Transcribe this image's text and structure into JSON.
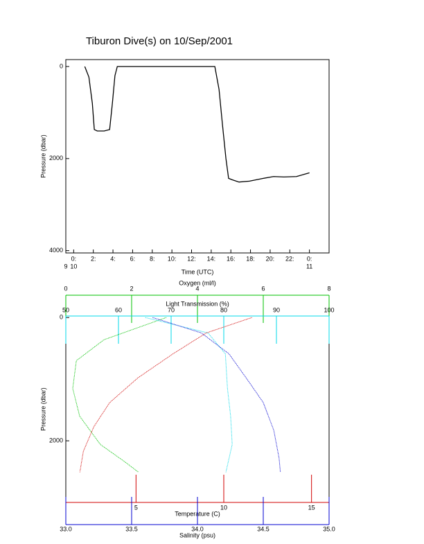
{
  "chart_data": [
    {
      "type": "line",
      "title": "Tiburon Dive(s) on 10/Sep/2001",
      "xlabel": "Time (UTC)",
      "ylabel": "Pressure (dbar)",
      "xlim": [
        -0.8,
        26
      ],
      "ylim": [
        -150,
        4050
      ],
      "y_inverted": true,
      "xticks": [
        {
          "value": 0,
          "label": "0:"
        },
        {
          "value": 2,
          "label": "2:"
        },
        {
          "value": 4,
          "label": "4:"
        },
        {
          "value": 6,
          "label": "6:"
        },
        {
          "value": 8,
          "label": "8:"
        },
        {
          "value": 10,
          "label": "10:"
        },
        {
          "value": 12,
          "label": "12:"
        },
        {
          "value": 14,
          "label": "14:"
        },
        {
          "value": 16,
          "label": "16:"
        },
        {
          "value": 18,
          "label": "18:"
        },
        {
          "value": 20,
          "label": "20:"
        },
        {
          "value": 22,
          "label": "22:"
        },
        {
          "value": 24,
          "label": "0:"
        }
      ],
      "day_ticks": [
        {
          "value": -0.8,
          "label": "9"
        },
        {
          "value": 0,
          "label": "10"
        },
        {
          "value": 24,
          "label": "11"
        }
      ],
      "yticks": [
        0,
        2000,
        4000
      ],
      "series": [
        {
          "color": "#000000",
          "x": [
            1.13,
            1.55,
            1.9,
            2.1,
            2.4,
            3.1,
            3.66,
            3.94,
            4.2,
            4.44,
            14.37,
            14.8,
            15.14,
            15.5,
            15.77,
            16.13,
            16.83,
            17.9,
            19.3,
            20.35,
            21.4,
            22.68,
            24.0
          ],
          "values": [
            0,
            230,
            800,
            1370,
            1400,
            1400,
            1370,
            800,
            200,
            0,
            0,
            500,
            1250,
            2000,
            2430,
            2460,
            2510,
            2490,
            2430,
            2390,
            2400,
            2390,
            2310
          ]
        }
      ]
    },
    {
      "type": "profile",
      "ylabel": "Pressure (dbar)",
      "ylim": [
        -25,
        3000
      ],
      "y_inverted": true,
      "yticks": [
        0,
        2000
      ],
      "axes": [
        {
          "label": "Oxygen (ml/l)",
          "color": "#00c000",
          "position": "top",
          "lim": [
            0,
            8
          ],
          "ticks": [
            0,
            2,
            4,
            6,
            8
          ]
        },
        {
          "label": "Light Transmission (%)",
          "color": "#00d8e8",
          "position": "top",
          "lim": [
            50,
            100
          ],
          "ticks": [
            50,
            60,
            70,
            80,
            90,
            100
          ]
        },
        {
          "label": "Temperature (C)",
          "color": "#d00000",
          "position": "bottom",
          "lim": [
            1,
            16
          ],
          "ticks": [
            5,
            10,
            15
          ]
        },
        {
          "label": "Salinity (psu)",
          "color": "#0000d0",
          "position": "bottom",
          "lim": [
            33,
            35
          ],
          "ticks": [
            {
              "value": 33,
              "label": "33.0"
            },
            {
              "value": 33.5,
              "label": "33.5"
            },
            {
              "value": 34,
              "label": "34.0"
            },
            {
              "value": 34.5,
              "label": "34.5"
            },
            {
              "value": 35,
              "label": "35.0"
            }
          ]
        }
      ],
      "series": [
        {
          "axis": 0,
          "color": "#00c000",
          "y": [
            0,
            360,
            700,
            1150,
            1600,
            2060,
            2340,
            2510
          ],
          "values": [
            3.05,
            1.16,
            0.32,
            0.21,
            0.42,
            1.05,
            1.79,
            2.21
          ]
        },
        {
          "axis": 1,
          "color": "#00d8e8",
          "y": [
            0,
            250,
            590,
            1150,
            1600,
            2060,
            2510
          ],
          "values": [
            65.1,
            77.0,
            80.3,
            80.7,
            81.3,
            81.6,
            80.4
          ]
        },
        {
          "axis": 2,
          "color": "#d00000",
          "y": [
            0,
            250,
            590,
            980,
            1380,
            1770,
            2170,
            2510
          ],
          "values": [
            11.6,
            9.0,
            7.1,
            5.1,
            3.5,
            2.6,
            2.0,
            1.8
          ]
        },
        {
          "axis": 3,
          "color": "#0000d0",
          "y": [
            0,
            250,
            590,
            1040,
            1380,
            1830,
            2280,
            2510
          ],
          "values": [
            33.66,
            34.03,
            34.24,
            34.39,
            34.5,
            34.58,
            34.62,
            34.63
          ]
        }
      ]
    }
  ]
}
